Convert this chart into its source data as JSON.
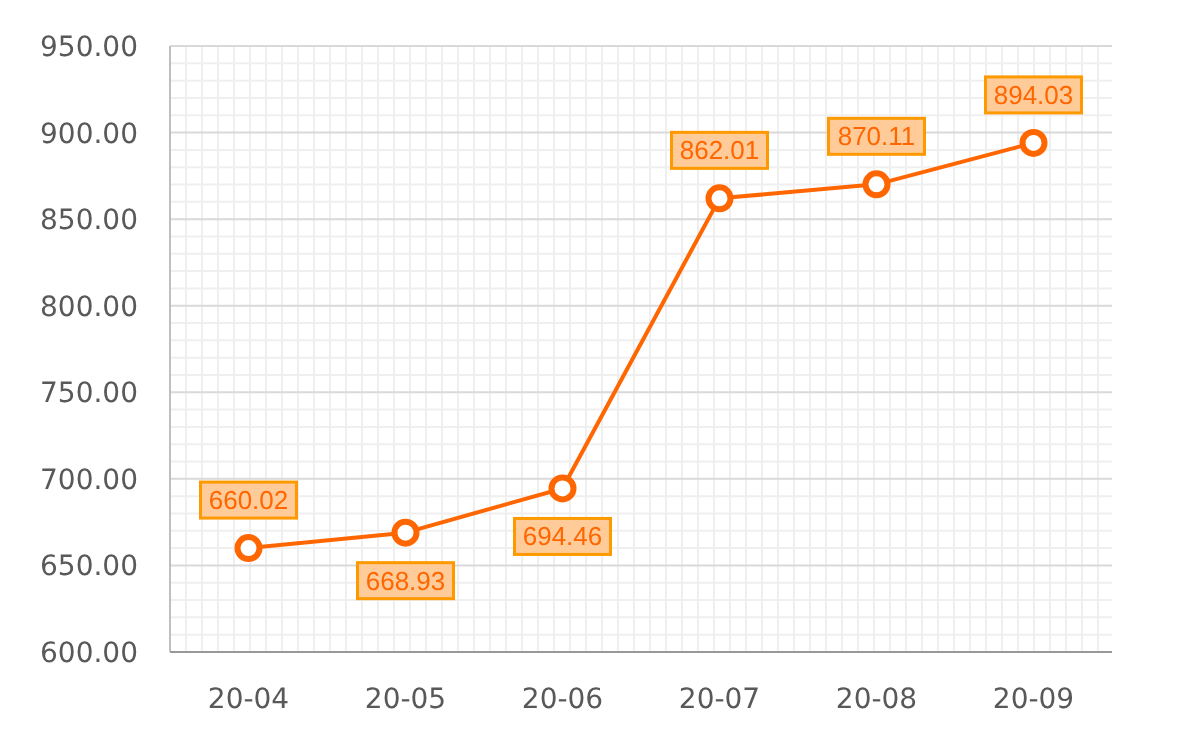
{
  "chart_data": {
    "type": "line",
    "categories": [
      "20-04",
      "20-05",
      "20-06",
      "20-07",
      "20-08",
      "20-09"
    ],
    "series": [
      {
        "color": "#ff6600",
        "values": [
          660.02,
          668.93,
          694.46,
          862.01,
          870.11,
          894.03
        ]
      }
    ],
    "ylim": [
      600,
      950
    ],
    "yticks": [
      {
        "value": 600,
        "label": "600.00"
      },
      {
        "value": 650,
        "label": "650.00"
      },
      {
        "value": 700,
        "label": "700.00"
      },
      {
        "value": 750,
        "label": "750.00"
      },
      {
        "value": 800,
        "label": "800.00"
      },
      {
        "value": 850,
        "label": "850.00"
      },
      {
        "value": 900,
        "label": "900.00"
      },
      {
        "value": 950,
        "label": "950.00"
      }
    ],
    "grid": true,
    "marker": "circle",
    "line_style": "solid",
    "data_labels": true
  }
}
